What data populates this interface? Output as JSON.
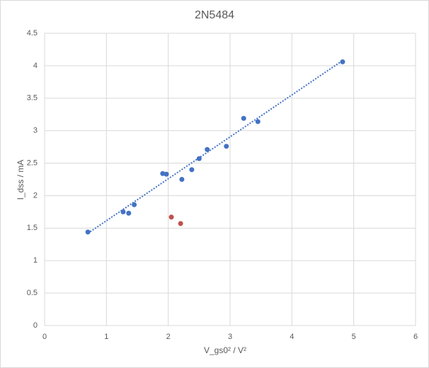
{
  "chart_data": {
    "type": "scatter",
    "title": "2N5484",
    "x_label": "V_gs0² / V²",
    "y_label": "I_dss / mA",
    "series": [
      {
        "color": "#4472c4",
        "x": [
          0.7,
          1.27,
          1.36,
          1.45,
          1.91,
          1.97,
          2.22,
          2.38,
          2.5,
          2.63,
          2.94,
          3.22,
          3.45,
          4.82
        ],
        "values": [
          1.44,
          1.75,
          1.73,
          1.86,
          2.34,
          2.33,
          2.25,
          2.4,
          2.57,
          2.71,
          2.76,
          3.19,
          3.14,
          4.06
        ]
      },
      {
        "color": "#c0504d",
        "x": [
          2.05,
          2.2
        ],
        "values": [
          1.67,
          1.57
        ]
      }
    ],
    "trendline": {
      "color": "#4472c4",
      "x": [
        0.7,
        4.82
      ],
      "values": [
        1.42,
        4.08
      ]
    },
    "xlim": [
      0,
      6
    ],
    "xticks": [
      0,
      1,
      2,
      3,
      4,
      5,
      6
    ],
    "ylim": [
      0,
      4.5
    ],
    "yticks": [
      0,
      0.5,
      1,
      1.5,
      2,
      2.5,
      3,
      3.5,
      4,
      4.5
    ],
    "grid": true
  }
}
